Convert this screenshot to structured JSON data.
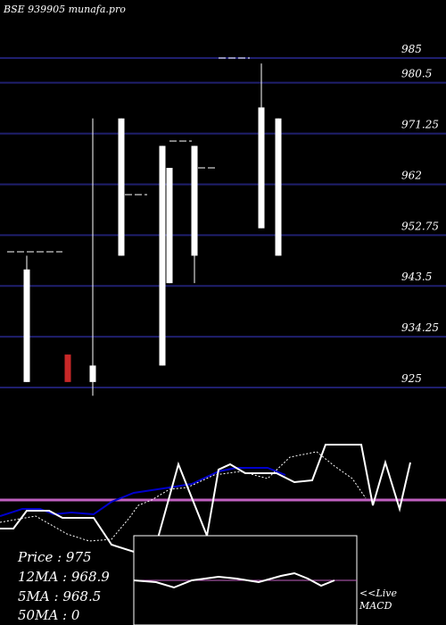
{
  "header": {
    "text": "BSE 939905 munafa.pro"
  },
  "colors": {
    "background": "#000000",
    "gridline": "#1f1f6e",
    "bull_candle": "#ffffff",
    "bear_candle": "#c82828",
    "ma_line": "#0000cc",
    "indicator_line": "#ffffff",
    "center_line": "#c060c0",
    "macd_box_border": "#ffffff"
  },
  "chart_data": {
    "type": "candlestick",
    "price_levels": [
      "985",
      "980.5",
      "971.25",
      "962",
      "952.75",
      "943.5",
      "934.25",
      "925"
    ],
    "ylim": [
      922,
      988
    ],
    "candles": [
      {
        "open": 946.5,
        "high": 949.0,
        "low": 926.0,
        "close": 926.0,
        "color": "white"
      },
      {
        "open": 931.0,
        "high": 931.0,
        "low": 926.0,
        "close": 926.0,
        "color": "red"
      },
      {
        "open": 926.0,
        "high": 974.0,
        "low": 923.5,
        "close": 929.0,
        "color": "white"
      },
      {
        "open": 949.0,
        "high": 974.0,
        "low": 949.0,
        "close": 974.0,
        "color": "white"
      },
      {
        "open": 929.0,
        "high": 969.0,
        "low": 929.0,
        "close": 969.0,
        "color": "white"
      },
      {
        "open": 949.0,
        "high": 969.0,
        "low": 944.0,
        "close": 969.0,
        "color": "white"
      },
      {
        "open": 944.0,
        "high": 965.0,
        "low": 944.0,
        "close": 965.0,
        "color": "white"
      },
      {
        "open": 954.0,
        "high": 984.0,
        "low": 954.0,
        "close": 976.0,
        "color": "white"
      },
      {
        "open": 949.0,
        "high": 974.0,
        "low": 949.0,
        "close": 974.0,
        "color": "white"
      }
    ],
    "stats": {
      "price": "Price   : 975",
      "ma12": "12MA : 968.9",
      "ma5": "5MA : 968.5",
      "ma50": "50MA : 0"
    },
    "macd_label": "<<Live\nMACD"
  }
}
